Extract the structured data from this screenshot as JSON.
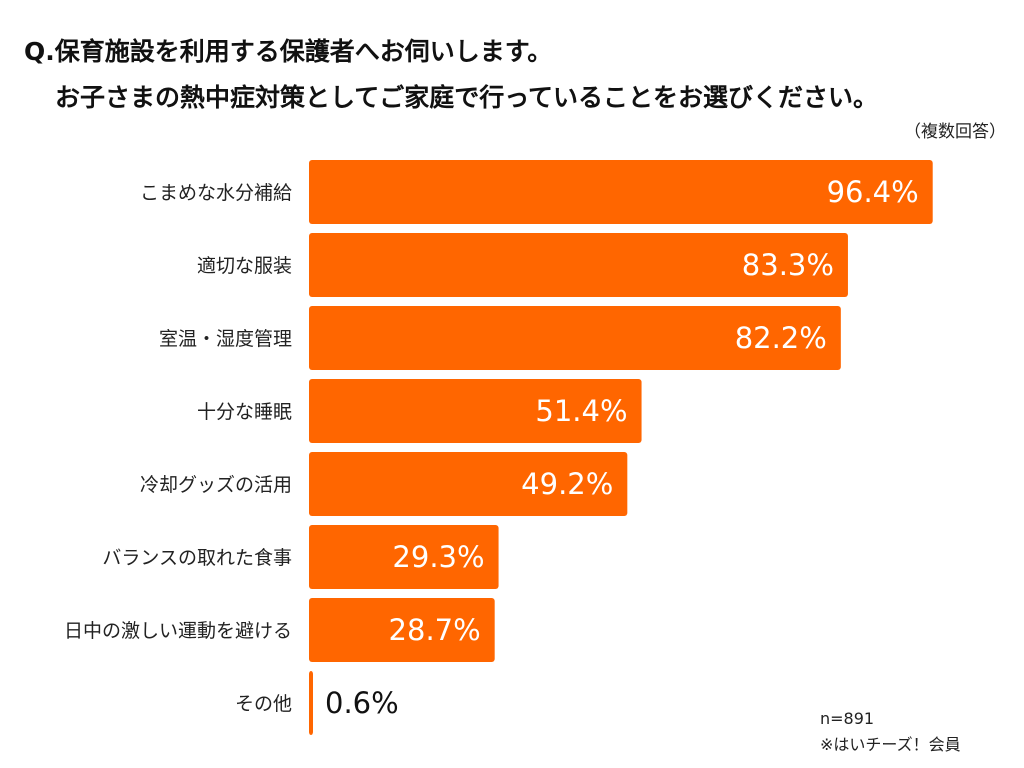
{
  "title": {
    "line1": "Q.保育施設を利用する保護者へお伺いします。",
    "line2": "お子さまの熱中症対策としてご家庭で行っていることをお選びください。",
    "note": "（複数回答）"
  },
  "footer": {
    "n": "n=891",
    "source": "※はいチーズ！会員"
  },
  "colors": {
    "bar": "#ff6600",
    "label_inside": "#ffffff",
    "label_outside": "#111111"
  },
  "chart_data": {
    "type": "bar",
    "orientation": "horizontal",
    "categories": [
      "こまめな水分補給",
      "適切な服装",
      "室温・湿度管理",
      "十分な睡眠",
      "冷却グッズの活用",
      "バランスの取れた食事",
      "日中の激しい運動を避ける",
      "その他"
    ],
    "values": [
      96.4,
      83.3,
      82.2,
      51.4,
      49.2,
      29.3,
      28.7,
      0.6
    ],
    "value_labels": [
      "96.4%",
      "83.3%",
      "82.2%",
      "51.4%",
      "49.2%",
      "29.3%",
      "28.7%",
      "0.6%"
    ],
    "unit": "%",
    "xlim": [
      0,
      100
    ],
    "grid": false,
    "legend": "none"
  }
}
